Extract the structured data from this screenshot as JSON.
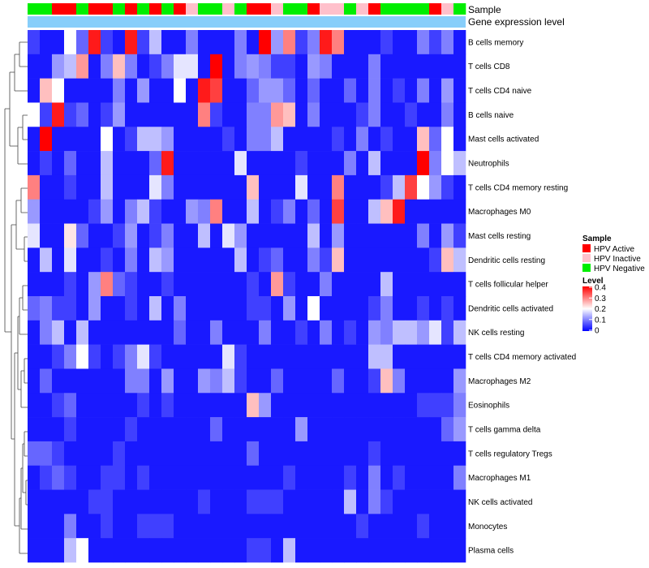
{
  "chart_data": {
    "type": "heatmap",
    "annotation_labels": {
      "sample": "Sample",
      "gene_expression": "Gene expression level"
    },
    "legend": {
      "sample_title": "Sample",
      "sample_entries": [
        {
          "label": "HPV Active",
          "color": "#ff0000"
        },
        {
          "label": "HPV Inactive",
          "color": "#ffc0cb"
        },
        {
          "label": "HPV Negative",
          "color": "#00ee00"
        }
      ],
      "level_title": "Level",
      "level_ticks": [
        "0.4",
        "0.3",
        "0.2",
        "0.1",
        "0"
      ],
      "level_min": 0,
      "level_max": 0.4,
      "color_low": "#0000ff",
      "color_mid": "#ffffff",
      "color_high": "#ff0000"
    },
    "gene_expression_color": "#87cefa",
    "rows": [
      "B cells memory",
      "T cells CD8",
      "T cells CD4 naive",
      "B cells naive",
      "Mast cells activated",
      "Neutrophils",
      "T cells CD4 memory resting",
      "Macrophages M0",
      "Mast cells resting",
      "Dendritic cells resting",
      "T cells follicular helper",
      "Dendritic cells activated",
      "NK cells resting",
      "T cells CD4 memory activated",
      "Macrophages M2",
      "Eosinophils",
      "T cells gamma delta",
      "T cells regulatory  Tregs",
      "Macrophages M1",
      "NK cells activated",
      "Monocytes",
      "Plasma cells"
    ],
    "sample_groups": [
      "N",
      "N",
      "A",
      "A",
      "N",
      "A",
      "A",
      "N",
      "A",
      "N",
      "A",
      "N",
      "A",
      "I",
      "N",
      "N",
      "I",
      "N",
      "A",
      "A",
      "I",
      "N",
      "N",
      "A",
      "I",
      "I",
      "N",
      "I",
      "A",
      "N",
      "N",
      "N",
      "N",
      "A",
      "I",
      "N"
    ],
    "values": [
      [
        0.05,
        0.02,
        0.02,
        0.2,
        0.08,
        0.38,
        0.05,
        0.02,
        0.38,
        0.05,
        0.15,
        0.02,
        0.02,
        0.1,
        0.02,
        0.02,
        0.02,
        0.1,
        0.02,
        0.4,
        0.12,
        0.3,
        0.05,
        0.1,
        0.38,
        0.3,
        0.02,
        0.02,
        0.02,
        0.05,
        0.02,
        0.02,
        0.1,
        0.05,
        0.1,
        0.02
      ],
      [
        0.02,
        0.02,
        0.12,
        0.15,
        0.28,
        0.02,
        0.1,
        0.25,
        0.1,
        0.02,
        0.05,
        0.1,
        0.18,
        0.18,
        0.02,
        0.4,
        0.02,
        0.1,
        0.12,
        0.1,
        0.05,
        0.05,
        0.02,
        0.12,
        0.1,
        0.02,
        0.02,
        0.02,
        0.1,
        0.02,
        0.02,
        0.02,
        0.02,
        0.02,
        0.02,
        0.02
      ],
      [
        0.02,
        0.25,
        0.2,
        0.02,
        0.02,
        0.02,
        0.02,
        0.1,
        0.02,
        0.12,
        0.02,
        0.02,
        0.2,
        0.02,
        0.38,
        0.35,
        0.02,
        0.02,
        0.08,
        0.12,
        0.12,
        0.08,
        0.02,
        0.08,
        0.02,
        0.02,
        0.08,
        0.02,
        0.1,
        0.02,
        0.05,
        0.02,
        0.1,
        0.02,
        0.12,
        0.02
      ],
      [
        0.2,
        0.05,
        0.38,
        0.05,
        0.08,
        0.02,
        0.05,
        0.12,
        0.02,
        0.02,
        0.02,
        0.02,
        0.02,
        0.02,
        0.3,
        0.05,
        0.02,
        0.02,
        0.1,
        0.1,
        0.28,
        0.25,
        0.02,
        0.1,
        0.02,
        0.02,
        0.02,
        0.05,
        0.1,
        0.02,
        0.02,
        0.05,
        0.02,
        0.02,
        0.1,
        0.02
      ],
      [
        0.02,
        0.4,
        0.02,
        0.02,
        0.02,
        0.02,
        0.2,
        0.02,
        0.05,
        0.15,
        0.15,
        0.12,
        0.02,
        0.02,
        0.02,
        0.02,
        0.05,
        0.02,
        0.1,
        0.1,
        0.15,
        0.02,
        0.02,
        0.02,
        0.02,
        0.05,
        0.02,
        0.1,
        0.02,
        0.05,
        0.02,
        0.02,
        0.25,
        0.08,
        0.2,
        0.02
      ],
      [
        0.02,
        0.05,
        0.02,
        0.08,
        0.02,
        0.02,
        0.15,
        0.02,
        0.02,
        0.02,
        0.08,
        0.38,
        0.02,
        0.02,
        0.02,
        0.02,
        0.02,
        0.18,
        0.02,
        0.02,
        0.02,
        0.02,
        0.05,
        0.02,
        0.02,
        0.02,
        0.1,
        0.02,
        0.15,
        0.02,
        0.02,
        0.02,
        0.4,
        0.1,
        0.2,
        0.15
      ],
      [
        0.3,
        0.02,
        0.02,
        0.05,
        0.02,
        0.02,
        0.15,
        0.02,
        0.02,
        0.02,
        0.18,
        0.1,
        0.02,
        0.02,
        0.02,
        0.02,
        0.02,
        0.02,
        0.25,
        0.02,
        0.02,
        0.02,
        0.18,
        0.02,
        0.02,
        0.3,
        0.02,
        0.02,
        0.02,
        0.05,
        0.15,
        0.35,
        0.2,
        0.12,
        0.05,
        0.02
      ],
      [
        0.12,
        0.02,
        0.02,
        0.02,
        0.02,
        0.05,
        0.12,
        0.02,
        0.1,
        0.15,
        0.05,
        0.02,
        0.02,
        0.12,
        0.1,
        0.3,
        0.02,
        0.02,
        0.15,
        0.02,
        0.05,
        0.1,
        0.02,
        0.08,
        0.02,
        0.35,
        0.02,
        0.02,
        0.15,
        0.25,
        0.38,
        0.02,
        0.02,
        0.02,
        0.02,
        0.02
      ],
      [
        0.18,
        0.02,
        0.02,
        0.22,
        0.08,
        0.02,
        0.02,
        0.05,
        0.12,
        0.02,
        0.05,
        0.1,
        0.02,
        0.02,
        0.15,
        0.02,
        0.18,
        0.12,
        0.02,
        0.02,
        0.02,
        0.02,
        0.02,
        0.15,
        0.02,
        0.12,
        0.02,
        0.02,
        0.02,
        0.02,
        0.02,
        0.02,
        0.1,
        0.02,
        0.12,
        0.05
      ],
      [
        0.02,
        0.15,
        0.02,
        0.18,
        0.02,
        0.02,
        0.05,
        0.02,
        0.1,
        0.02,
        0.15,
        0.12,
        0.02,
        0.02,
        0.02,
        0.02,
        0.02,
        0.15,
        0.02,
        0.05,
        0.08,
        0.02,
        0.02,
        0.1,
        0.05,
        0.25,
        0.02,
        0.02,
        0.02,
        0.02,
        0.02,
        0.02,
        0.02,
        0.05,
        0.25,
        0.15
      ],
      [
        0.02,
        0.02,
        0.02,
        0.05,
        0.02,
        0.12,
        0.3,
        0.08,
        0.05,
        0.02,
        0.02,
        0.05,
        0.02,
        0.02,
        0.02,
        0.02,
        0.02,
        0.02,
        0.05,
        0.02,
        0.28,
        0.05,
        0.02,
        0.02,
        0.1,
        0.02,
        0.02,
        0.02,
        0.02,
        0.15,
        0.02,
        0.02,
        0.02,
        0.02,
        0.02,
        0.02
      ],
      [
        0.08,
        0.1,
        0.05,
        0.05,
        0.02,
        0.12,
        0.02,
        0.02,
        0.05,
        0.02,
        0.15,
        0.02,
        0.1,
        0.02,
        0.02,
        0.02,
        0.02,
        0.02,
        0.05,
        0.05,
        0.02,
        0.12,
        0.02,
        0.2,
        0.02,
        0.02,
        0.02,
        0.02,
        0.05,
        0.1,
        0.02,
        0.02,
        0.05,
        0.02,
        0.05,
        0.02
      ],
      [
        0.02,
        0.1,
        0.15,
        0.02,
        0.15,
        0.02,
        0.02,
        0.02,
        0.02,
        0.02,
        0.02,
        0.02,
        0.08,
        0.02,
        0.02,
        0.1,
        0.02,
        0.02,
        0.02,
        0.1,
        0.02,
        0.02,
        0.05,
        0.02,
        0.1,
        0.02,
        0.05,
        0.02,
        0.12,
        0.1,
        0.15,
        0.15,
        0.12,
        0.18,
        0.05,
        0.15
      ],
      [
        0.02,
        0.02,
        0.05,
        0.1,
        0.2,
        0.05,
        0.02,
        0.05,
        0.1,
        0.18,
        0.05,
        0.02,
        0.02,
        0.02,
        0.02,
        0.02,
        0.18,
        0.05,
        0.02,
        0.02,
        0.02,
        0.02,
        0.02,
        0.02,
        0.02,
        0.02,
        0.02,
        0.02,
        0.15,
        0.15,
        0.02,
        0.02,
        0.02,
        0.02,
        0.02,
        0.02
      ],
      [
        0.02,
        0.08,
        0.02,
        0.02,
        0.02,
        0.02,
        0.02,
        0.02,
        0.1,
        0.1,
        0.02,
        0.12,
        0.02,
        0.02,
        0.12,
        0.1,
        0.15,
        0.05,
        0.02,
        0.02,
        0.08,
        0.02,
        0.02,
        0.02,
        0.02,
        0.08,
        0.02,
        0.02,
        0.05,
        0.25,
        0.1,
        0.02,
        0.02,
        0.02,
        0.02,
        0.12
      ],
      [
        0.02,
        0.02,
        0.05,
        0.08,
        0.02,
        0.02,
        0.02,
        0.02,
        0.02,
        0.05,
        0.02,
        0.05,
        0.02,
        0.02,
        0.02,
        0.02,
        0.02,
        0.02,
        0.25,
        0.12,
        0.02,
        0.02,
        0.02,
        0.02,
        0.02,
        0.02,
        0.02,
        0.02,
        0.02,
        0.02,
        0.02,
        0.02,
        0.05,
        0.05,
        0.05,
        0.1
      ],
      [
        0.02,
        0.02,
        0.02,
        0.05,
        0.02,
        0.02,
        0.02,
        0.02,
        0.05,
        0.02,
        0.02,
        0.02,
        0.02,
        0.02,
        0.02,
        0.08,
        0.02,
        0.02,
        0.02,
        0.02,
        0.02,
        0.02,
        0.12,
        0.02,
        0.02,
        0.02,
        0.02,
        0.02,
        0.02,
        0.02,
        0.02,
        0.02,
        0.02,
        0.02,
        0.08,
        0.12
      ],
      [
        0.08,
        0.08,
        0.05,
        0.02,
        0.02,
        0.02,
        0.02,
        0.05,
        0.02,
        0.02,
        0.02,
        0.02,
        0.02,
        0.02,
        0.02,
        0.02,
        0.02,
        0.02,
        0.08,
        0.02,
        0.02,
        0.02,
        0.02,
        0.02,
        0.02,
        0.02,
        0.02,
        0.02,
        0.05,
        0.02,
        0.02,
        0.02,
        0.02,
        0.02,
        0.02,
        0.02
      ],
      [
        0.02,
        0.05,
        0.08,
        0.05,
        0.02,
        0.02,
        0.05,
        0.05,
        0.02,
        0.05,
        0.02,
        0.02,
        0.02,
        0.02,
        0.02,
        0.02,
        0.02,
        0.02,
        0.02,
        0.02,
        0.02,
        0.05,
        0.02,
        0.02,
        0.02,
        0.02,
        0.05,
        0.02,
        0.1,
        0.02,
        0.05,
        0.02,
        0.02,
        0.02,
        0.02,
        0.1
      ],
      [
        0.02,
        0.02,
        0.02,
        0.02,
        0.02,
        0.05,
        0.05,
        0.02,
        0.02,
        0.02,
        0.02,
        0.02,
        0.02,
        0.02,
        0.05,
        0.02,
        0.02,
        0.02,
        0.05,
        0.05,
        0.05,
        0.02,
        0.02,
        0.02,
        0.02,
        0.02,
        0.15,
        0.02,
        0.1,
        0.05,
        0.02,
        0.02,
        0.02,
        0.02,
        0.02,
        0.02
      ],
      [
        0.02,
        0.02,
        0.02,
        0.1,
        0.02,
        0.02,
        0.05,
        0.02,
        0.02,
        0.05,
        0.05,
        0.05,
        0.02,
        0.02,
        0.02,
        0.02,
        0.02,
        0.02,
        0.02,
        0.02,
        0.02,
        0.02,
        0.02,
        0.02,
        0.02,
        0.02,
        0.02,
        0.05,
        0.02,
        0.02,
        0.02,
        0.02,
        0.05,
        0.02,
        0.02,
        0.02
      ],
      [
        0.02,
        0.02,
        0.02,
        0.15,
        0.2,
        0.02,
        0.02,
        0.02,
        0.02,
        0.02,
        0.02,
        0.02,
        0.02,
        0.02,
        0.02,
        0.02,
        0.02,
        0.02,
        0.05,
        0.05,
        0.02,
        0.15,
        0.02,
        0.02,
        0.02,
        0.02,
        0.02,
        0.02,
        0.02,
        0.02,
        0.02,
        0.02,
        0.02,
        0.02,
        0.02,
        0.02
      ]
    ]
  }
}
